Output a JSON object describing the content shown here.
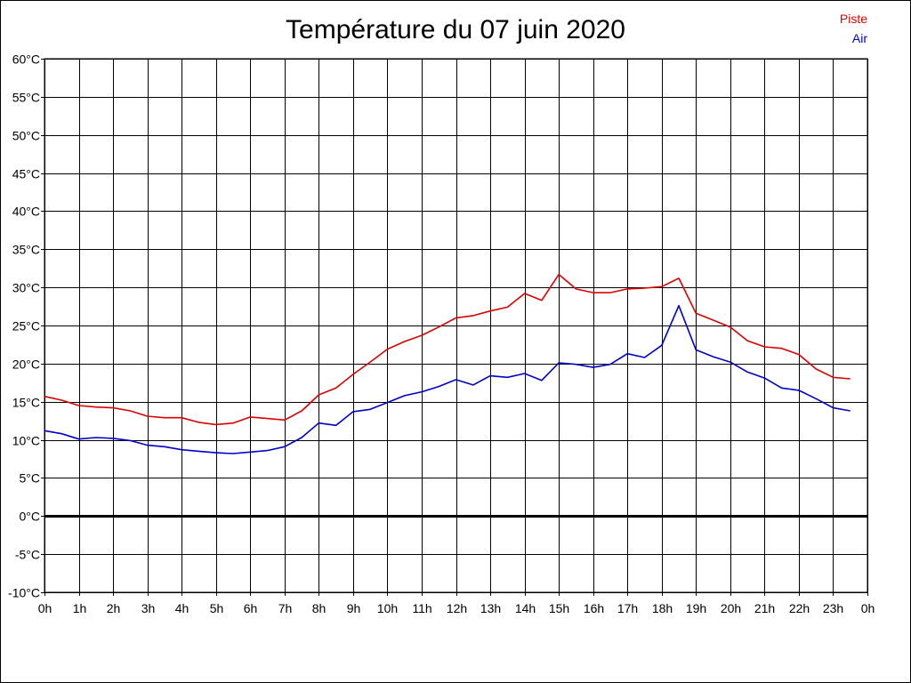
{
  "chart_data": {
    "type": "line",
    "title": "Température du 07 juin 2020",
    "xlabel": "",
    "ylabel": "",
    "ylim": [
      -10,
      60
    ],
    "xlim": [
      0,
      24
    ],
    "grid": true,
    "legend_placement": "top-right",
    "y_ticks": [
      "-10°C",
      "-5°C",
      "0°C",
      "5°C",
      "10°C",
      "15°C",
      "20°C",
      "25°C",
      "30°C",
      "35°C",
      "40°C",
      "45°C",
      "50°C",
      "55°C",
      "60°C"
    ],
    "y_tick_values": [
      -10,
      -5,
      0,
      5,
      10,
      15,
      20,
      25,
      30,
      35,
      40,
      45,
      50,
      55,
      60
    ],
    "x_ticks": [
      "0h",
      "1h",
      "2h",
      "3h",
      "4h",
      "5h",
      "6h",
      "7h",
      "8h",
      "9h",
      "10h",
      "11h",
      "12h",
      "13h",
      "14h",
      "15h",
      "16h",
      "17h",
      "18h",
      "19h",
      "20h",
      "21h",
      "22h",
      "23h",
      "0h"
    ],
    "zero_line": 0,
    "series": [
      {
        "name": "Piste",
        "color": "#dd0000",
        "x": [
          0,
          0.5,
          1,
          1.5,
          2,
          2.5,
          3,
          3.5,
          4,
          4.5,
          5,
          5.5,
          6,
          6.5,
          7,
          7.5,
          8,
          8.5,
          9,
          9.5,
          10,
          10.5,
          11,
          11.5,
          12,
          12.5,
          13,
          13.5,
          14,
          14.5,
          15,
          15.5,
          16,
          16.5,
          17,
          17.5,
          18,
          18.5,
          19,
          19.5,
          20,
          20.5,
          21,
          21.5,
          22,
          22.5,
          23,
          23.5
        ],
        "values": [
          15.7,
          15.2,
          14.5,
          14.3,
          14.2,
          13.8,
          13.1,
          12.9,
          12.9,
          12.3,
          12.0,
          12.2,
          13.0,
          12.8,
          12.6,
          13.8,
          15.9,
          16.8,
          18.6,
          20.2,
          21.9,
          22.9,
          23.7,
          24.8,
          26.0,
          26.3,
          26.9,
          27.4,
          29.2,
          28.3,
          31.7,
          29.8,
          29.3,
          29.3,
          29.8,
          29.9,
          30.1,
          31.2,
          26.6,
          25.7,
          24.8,
          23.0,
          22.2,
          22.0,
          21.2,
          19.3,
          18.2,
          18.0
        ]
      },
      {
        "name": "Air",
        "color": "#0000cc",
        "x": [
          0,
          0.5,
          1,
          1.5,
          2,
          2.5,
          3,
          3.5,
          4,
          4.5,
          5,
          5.5,
          6,
          6.5,
          7,
          7.5,
          8,
          8.5,
          9,
          9.5,
          10,
          10.5,
          11,
          11.5,
          12,
          12.5,
          13,
          13.5,
          14,
          14.5,
          15,
          15.5,
          16,
          16.5,
          17,
          17.5,
          18,
          18.5,
          19,
          19.5,
          20,
          20.5,
          21,
          21.5,
          22,
          22.5,
          23,
          23.5
        ],
        "values": [
          11.2,
          10.8,
          10.1,
          10.3,
          10.2,
          9.9,
          9.3,
          9.1,
          8.7,
          8.5,
          8.3,
          8.2,
          8.4,
          8.6,
          9.1,
          10.3,
          12.2,
          11.9,
          13.7,
          14.0,
          14.9,
          15.8,
          16.3,
          17.0,
          17.9,
          17.2,
          18.4,
          18.2,
          18.7,
          17.8,
          20.1,
          19.9,
          19.5,
          19.9,
          21.3,
          20.8,
          22.4,
          27.6,
          21.8,
          20.9,
          20.2,
          18.9,
          18.1,
          16.8,
          16.5,
          15.4,
          14.2,
          13.8
        ]
      }
    ]
  }
}
